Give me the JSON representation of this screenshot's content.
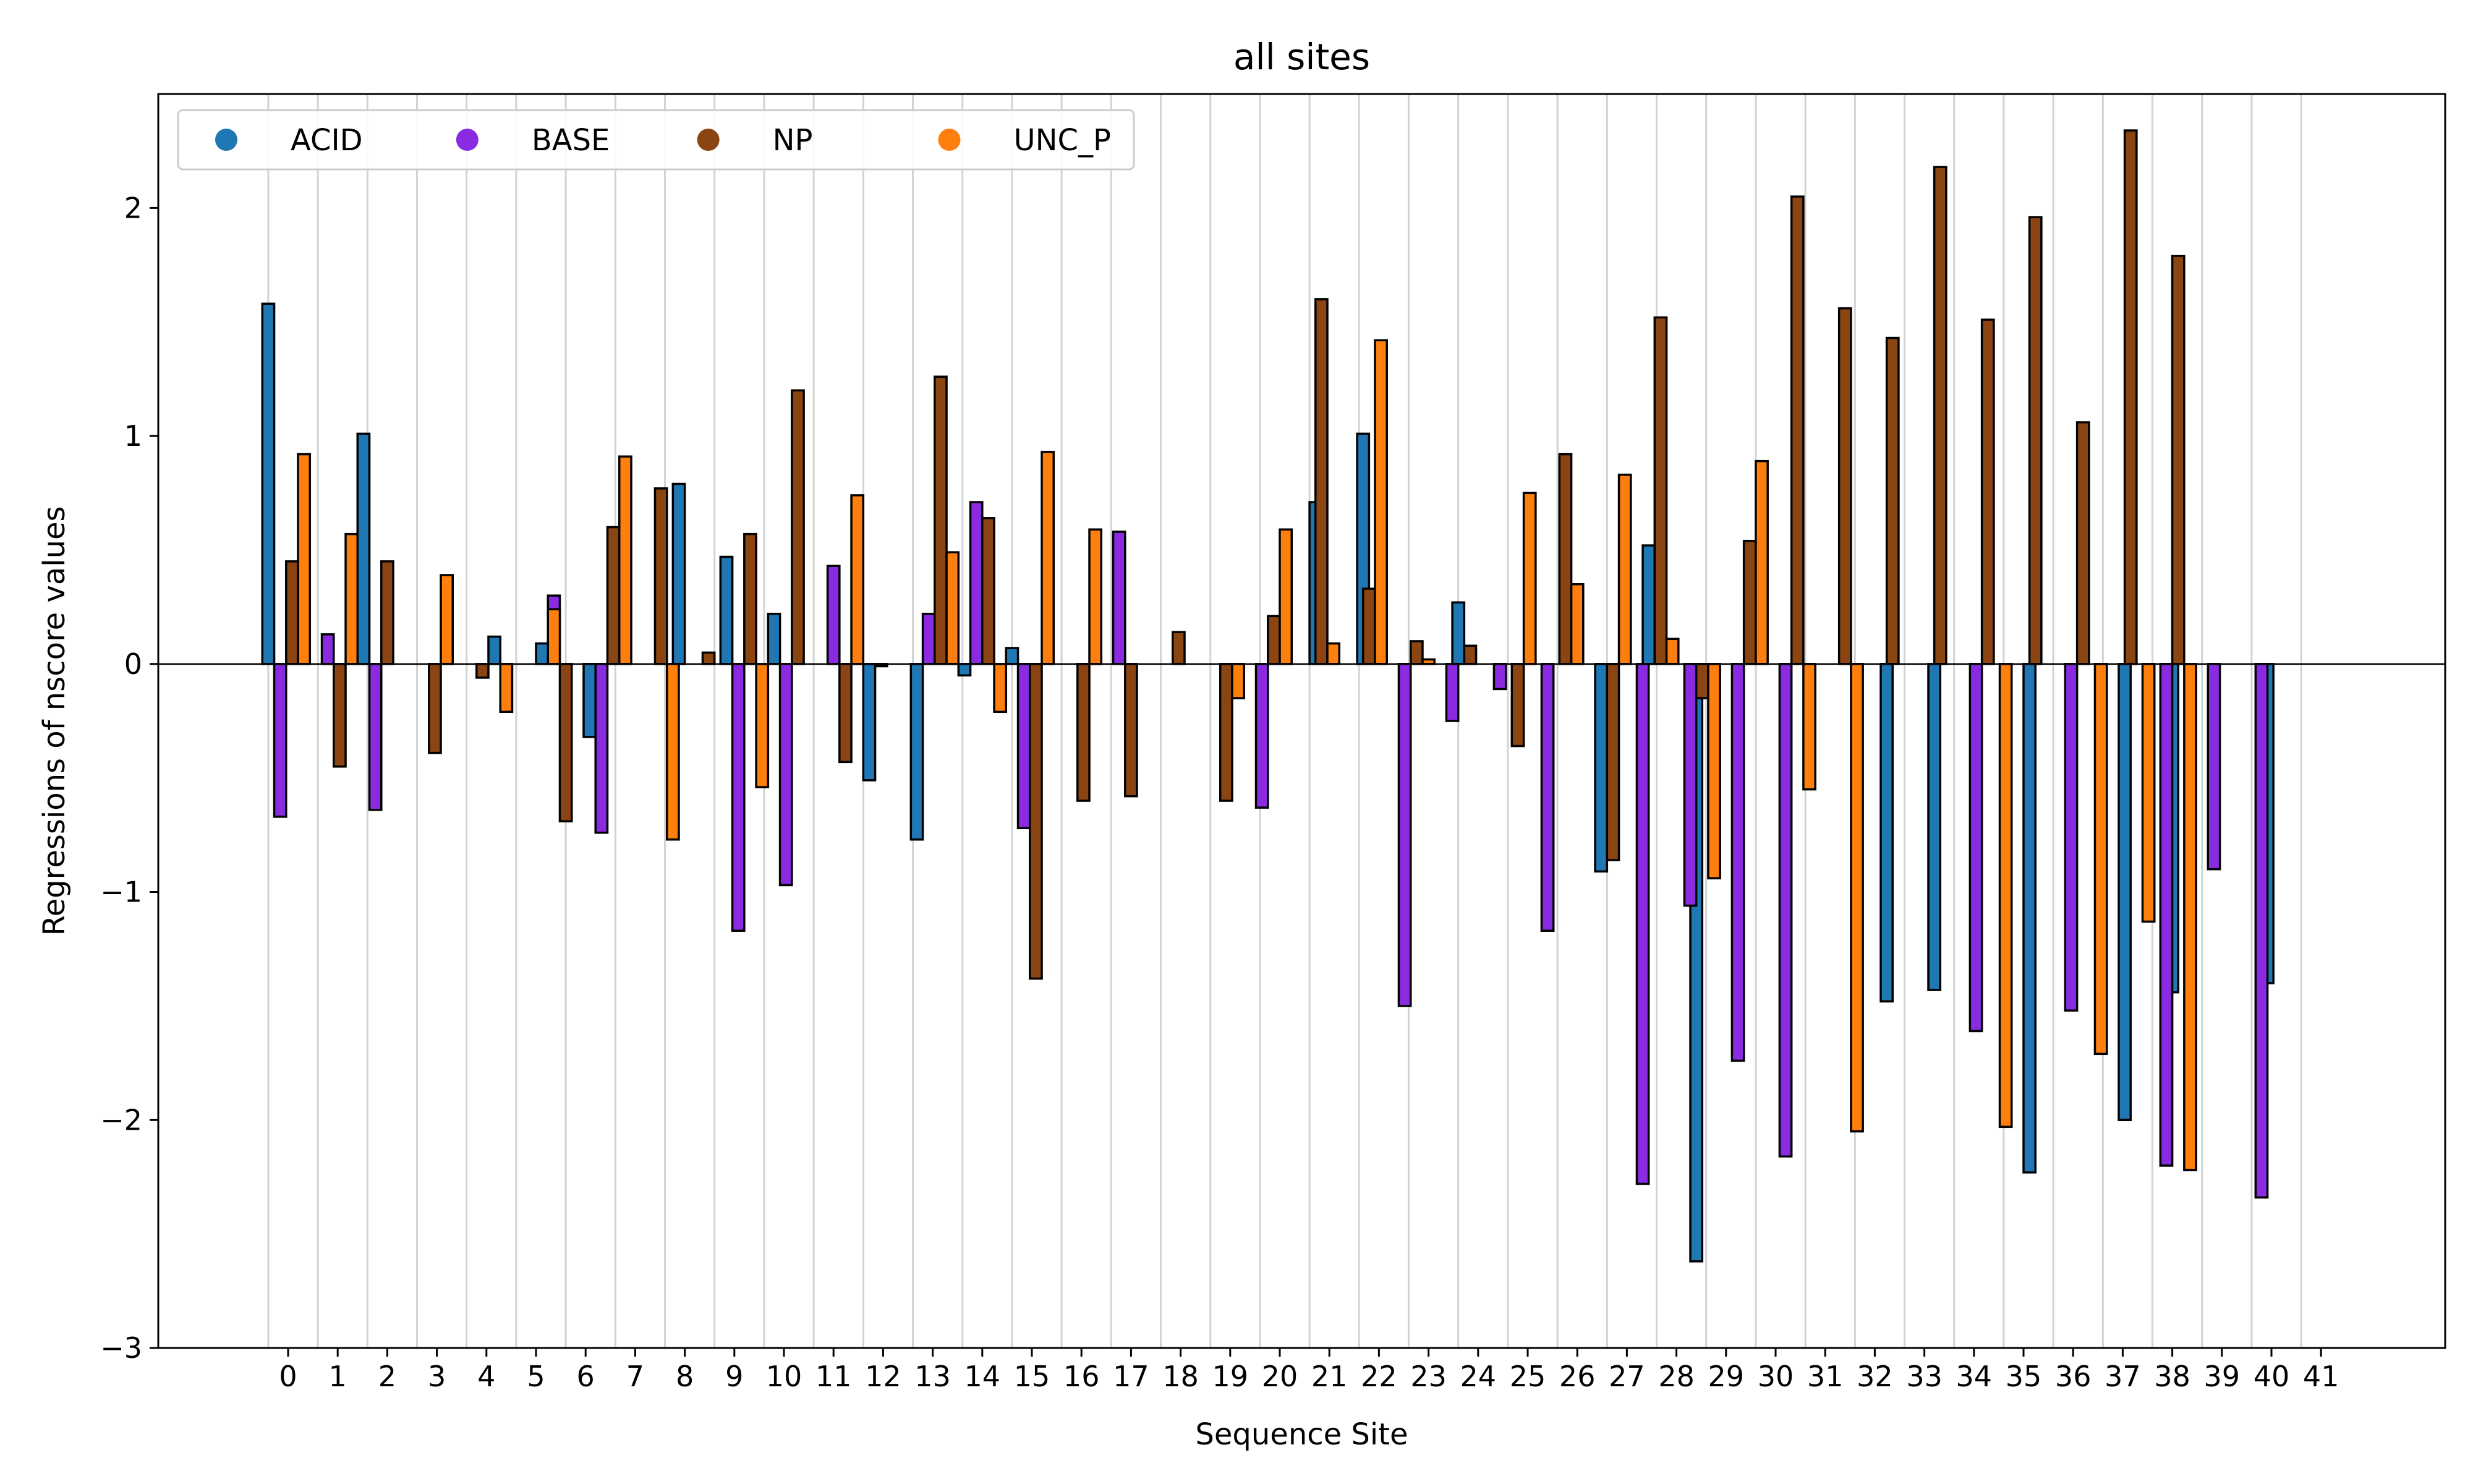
{
  "chart_data": {
    "type": "bar",
    "title": "all sites",
    "xlabel": "Sequence Site",
    "ylabel": "Regressions of nscore values",
    "ylim": [
      -3,
      2.5
    ],
    "yticks": [
      -3,
      -2,
      -1,
      0,
      1,
      2
    ],
    "ytick_labels": [
      "−3",
      "−2",
      "−1",
      "0",
      "1",
      "2"
    ],
    "categories": [
      "0",
      "1",
      "2",
      "3",
      "4",
      "5",
      "6",
      "7",
      "8",
      "9",
      "10",
      "11",
      "12",
      "13",
      "14",
      "15",
      "16",
      "17",
      "18",
      "19",
      "20",
      "21",
      "22",
      "23",
      "24",
      "25",
      "26",
      "27",
      "28",
      "29",
      "30",
      "31",
      "32",
      "33",
      "34",
      "35",
      "36",
      "37",
      "38",
      "39",
      "40",
      "41"
    ],
    "legend": {
      "placement": "top-left",
      "columns": 4
    },
    "grid": {
      "x": true,
      "y": false
    },
    "series": [
      {
        "name": "ACID",
        "color": "#1f77b4",
        "values": [
          [
            0,
            1.58
          ],
          [
            1.92,
            1.01
          ],
          [
            4.56,
            0.12
          ],
          [
            5.52,
            0.09
          ],
          [
            6.48,
            -0.32
          ],
          [
            8.28,
            0.79
          ],
          [
            9.24,
            0.47
          ],
          [
            10.2,
            0.22
          ],
          [
            12.12,
            -0.51
          ],
          [
            13.08,
            -0.77
          ],
          [
            14.04,
            -0.05
          ],
          [
            15.0,
            0.07
          ],
          [
            21.12,
            0.71
          ],
          [
            22.08,
            1.01
          ],
          [
            24.0,
            0.27
          ],
          [
            26.88,
            -0.91
          ],
          [
            27.84,
            0.52
          ],
          [
            28.8,
            -2.62
          ],
          [
            32.64,
            -1.48
          ],
          [
            33.6,
            -1.43
          ],
          [
            35.52,
            -2.23
          ],
          [
            37.44,
            -2.0
          ],
          [
            38.4,
            -1.44
          ],
          [
            40.32,
            -1.4
          ]
        ]
      },
      {
        "name": "BASE",
        "color": "#8a2be2",
        "values": [
          [
            0.24,
            -0.67
          ],
          [
            1.2,
            0.13
          ],
          [
            2.16,
            -0.64
          ],
          [
            5.76,
            0.3
          ],
          [
            6.72,
            -0.74
          ],
          [
            9.48,
            -1.17
          ],
          [
            10.44,
            -0.97
          ],
          [
            11.4,
            0.43
          ],
          [
            13.32,
            0.22
          ],
          [
            14.28,
            0.71
          ],
          [
            15.24,
            -0.72
          ],
          [
            17.16,
            0.58
          ],
          [
            20.04,
            -0.63
          ],
          [
            22.92,
            -1.5
          ],
          [
            23.88,
            -0.25
          ],
          [
            24.84,
            -0.11
          ],
          [
            25.8,
            -1.17
          ],
          [
            27.72,
            -2.28
          ],
          [
            28.68,
            -1.06
          ],
          [
            29.64,
            -1.74
          ],
          [
            30.6,
            -2.16
          ],
          [
            34.44,
            -1.61
          ],
          [
            36.36,
            -1.52
          ],
          [
            38.28,
            -2.2
          ],
          [
            39.24,
            -0.9
          ],
          [
            40.2,
            -2.34
          ]
        ]
      },
      {
        "name": "NP",
        "color": "#8b4513",
        "values": [
          [
            0.48,
            0.45
          ],
          [
            1.44,
            -0.45
          ],
          [
            2.4,
            0.45
          ],
          [
            3.36,
            -0.39
          ],
          [
            4.32,
            -0.06
          ],
          [
            6.0,
            -0.69
          ],
          [
            6.96,
            0.6
          ],
          [
            7.92,
            0.77
          ],
          [
            8.88,
            0.05
          ],
          [
            9.72,
            0.57
          ],
          [
            10.68,
            1.2
          ],
          [
            11.64,
            -0.43
          ],
          [
            12.36,
            -0.01
          ],
          [
            13.56,
            1.26
          ],
          [
            14.52,
            0.64
          ],
          [
            15.48,
            -1.38
          ],
          [
            16.44,
            -0.6
          ],
          [
            17.4,
            -0.58
          ],
          [
            18.36,
            0.14
          ],
          [
            19.32,
            -0.6
          ],
          [
            20.28,
            0.21
          ],
          [
            21.24,
            1.6
          ],
          [
            22.2,
            0.33
          ],
          [
            23.16,
            0.1
          ],
          [
            24.24,
            0.08
          ],
          [
            25.2,
            -0.36
          ],
          [
            26.16,
            0.92
          ],
          [
            27.12,
            -0.86
          ],
          [
            28.08,
            1.52
          ],
          [
            28.92,
            -0.15
          ],
          [
            29.88,
            0.54
          ],
          [
            30.84,
            2.05
          ],
          [
            31.8,
            1.56
          ],
          [
            32.76,
            1.43
          ],
          [
            33.72,
            2.18
          ],
          [
            34.68,
            1.51
          ],
          [
            35.64,
            1.96
          ],
          [
            36.6,
            1.06
          ],
          [
            37.56,
            2.34
          ],
          [
            38.52,
            1.79
          ]
        ]
      },
      {
        "name": "UNC_P",
        "color": "#ff7f0e",
        "values": [
          [
            0.72,
            0.92
          ],
          [
            1.68,
            0.57
          ],
          [
            3.6,
            0.39
          ],
          [
            4.8,
            -0.21
          ],
          [
            5.76,
            0.24
          ],
          [
            7.2,
            0.91
          ],
          [
            8.16,
            -0.77
          ],
          [
            9.96,
            -0.54
          ],
          [
            11.88,
            0.74
          ],
          [
            13.8,
            0.49
          ],
          [
            14.76,
            -0.21
          ],
          [
            15.72,
            0.93
          ],
          [
            16.68,
            0.59
          ],
          [
            19.56,
            -0.15
          ],
          [
            20.52,
            0.59
          ],
          [
            21.48,
            0.09
          ],
          [
            22.44,
            1.42
          ],
          [
            23.4,
            0.02
          ],
          [
            25.44,
            0.75
          ],
          [
            26.4,
            0.35
          ],
          [
            27.36,
            0.83
          ],
          [
            28.32,
            0.11
          ],
          [
            29.16,
            -0.94
          ],
          [
            30.12,
            0.89
          ],
          [
            31.08,
            -0.55
          ],
          [
            32.04,
            -2.05
          ],
          [
            35.04,
            -2.03
          ],
          [
            36.96,
            -1.71
          ],
          [
            37.92,
            -1.13
          ],
          [
            38.76,
            -2.22
          ]
        ]
      }
    ]
  }
}
